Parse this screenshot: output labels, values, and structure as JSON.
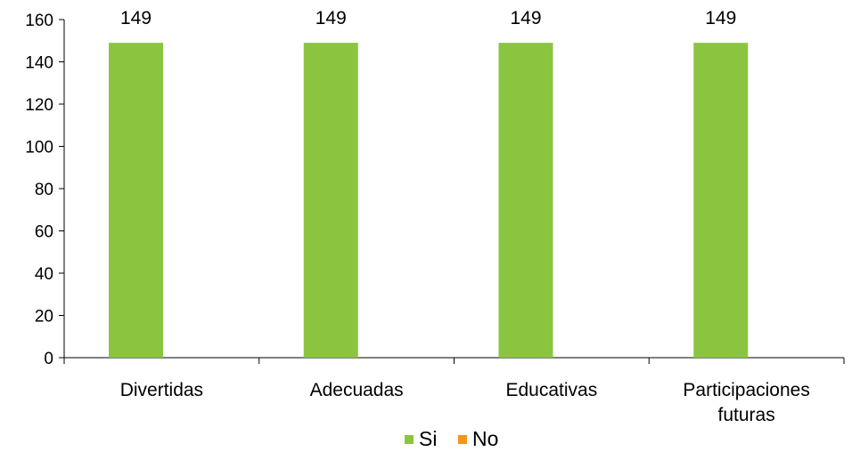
{
  "chart_data": {
    "type": "bar",
    "categories": [
      [
        "Divertidas"
      ],
      [
        "Adecuadas"
      ],
      [
        "Educativas"
      ],
      [
        "Participaciones",
        "futuras"
      ]
    ],
    "series": [
      {
        "name": "Si",
        "values": [
          149,
          149,
          149,
          149
        ],
        "color": "#8BC53F"
      },
      {
        "name": "No",
        "values": [
          0,
          0,
          0,
          0
        ],
        "color": "#F7941D"
      }
    ],
    "ylim": [
      0,
      160
    ],
    "yticks": [
      0,
      20,
      40,
      60,
      80,
      100,
      120,
      140,
      160
    ],
    "data_labels": [
      "149",
      "149",
      "149",
      "149"
    ],
    "grid": false,
    "legend": "bottom"
  }
}
